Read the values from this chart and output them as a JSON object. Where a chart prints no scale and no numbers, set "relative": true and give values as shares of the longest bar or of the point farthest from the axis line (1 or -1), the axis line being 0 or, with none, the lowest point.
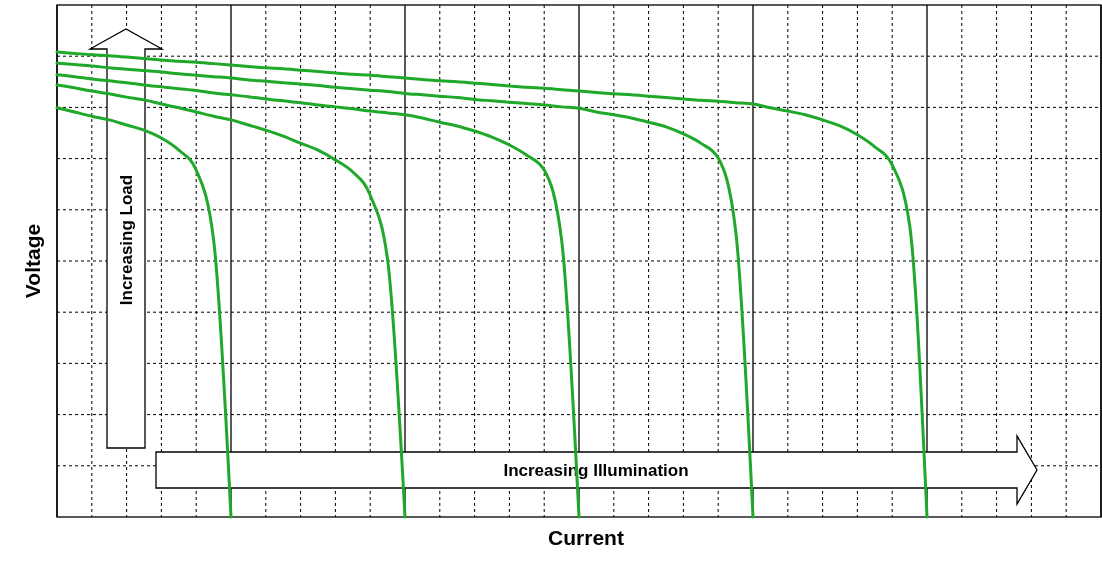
{
  "chart_data": {
    "type": "line",
    "relative": true,
    "xlabel": "Current",
    "ylabel": "Voltage",
    "grid": true,
    "categories": [
      null,
      null,
      null,
      null,
      null,
      null,
      null,
      null,
      null,
      null,
      null,
      null,
      null,
      null,
      null,
      null,
      null,
      null,
      null,
      null,
      null,
      null,
      null,
      null,
      null,
      null,
      null,
      null,
      null,
      null,
      null,
      null,
      null,
      null,
      null,
      null,
      null,
      null,
      null,
      null,
      null,
      null,
      null,
      null,
      null,
      null,
      null,
      null,
      null,
      null,
      null,
      null,
      null,
      null,
      null,
      null,
      null,
      null,
      null,
      null,
      null
    ],
    "annotations": [
      "Increasing Load",
      "Increasing Illumination"
    ],
    "series": [
      {
        "color": "#1fa82a",
        "values": [
          0.88,
          0.871,
          0.862,
          0.854,
          0.843,
          0.832,
          0.815,
          0.789,
          0.746,
          0.596,
          0,
          null,
          null,
          null,
          null,
          null,
          null,
          null,
          null,
          null,
          null,
          null,
          null,
          null,
          null,
          null,
          null,
          null,
          null,
          null,
          null,
          null,
          null,
          null,
          null,
          null,
          null,
          null,
          null,
          null,
          null,
          null,
          null,
          null,
          null,
          null,
          null,
          null,
          null,
          null,
          null,
          null,
          null,
          null,
          null,
          null,
          null,
          null,
          null,
          null,
          null
        ]
      },
      {
        "color": "#1fa82a",
        "values": [
          0.929,
          0.923,
          0.916,
          0.91,
          0.903,
          0.897,
          0.888,
          0.88,
          0.871,
          0.862,
          0.854,
          0.843,
          0.832,
          0.819,
          0.804,
          0.789,
          0.768,
          0.742,
          0.692,
          0.553,
          0,
          null,
          null,
          null,
          null,
          null,
          null,
          null,
          null,
          null,
          null,
          null,
          null,
          null,
          null,
          null,
          null,
          null,
          null,
          null,
          null,
          null,
          null,
          null,
          null,
          null,
          null,
          null,
          null,
          null,
          null,
          null,
          null,
          null,
          null,
          null,
          null,
          null,
          null,
          null,
          null
        ]
      },
      {
        "color": "#1fa82a",
        "values": [
          0.951,
          0.947,
          0.942,
          0.938,
          0.934,
          0.929,
          0.925,
          0.921,
          0.917,
          0.912,
          0.908,
          0.904,
          0.899,
          0.895,
          0.891,
          0.886,
          0.882,
          0.878,
          0.873,
          0.869,
          0.865,
          0.858,
          0.849,
          0.841,
          0.83,
          0.817,
          0.8,
          0.778,
          0.746,
          0.596,
          0,
          null,
          null,
          null,
          null,
          null,
          null,
          null,
          null,
          null,
          null,
          null,
          null,
          null,
          null,
          null,
          null,
          null,
          null,
          null,
          null,
          null,
          null,
          null,
          null,
          null,
          null,
          null,
          null,
          null,
          null
        ]
      },
      {
        "color": "#1fa82a",
        "values": [
          0.976,
          0.973,
          0.97,
          0.966,
          0.963,
          0.96,
          0.957,
          0.953,
          0.95,
          0.947,
          0.944,
          0.94,
          0.937,
          0.934,
          0.931,
          0.928,
          0.924,
          0.921,
          0.918,
          0.915,
          0.911,
          0.908,
          0.905,
          0.902,
          0.898,
          0.895,
          0.892,
          0.889,
          0.886,
          0.882,
          0.879,
          0.871,
          0.865,
          0.858,
          0.849,
          0.839,
          0.824,
          0.804,
          0.772,
          0.617,
          0,
          null,
          null,
          null,
          null,
          null,
          null,
          null,
          null,
          null,
          null,
          null,
          null,
          null,
          null,
          null,
          null,
          null,
          null,
          null,
          null
        ]
      },
      {
        "color": "#1fa82a",
        "values": [
          1,
          0.997,
          0.994,
          0.992,
          0.989,
          0.986,
          0.983,
          0.98,
          0.978,
          0.975,
          0.972,
          0.969,
          0.966,
          0.964,
          0.961,
          0.958,
          0.955,
          0.952,
          0.95,
          0.947,
          0.944,
          0.941,
          0.938,
          0.936,
          0.933,
          0.93,
          0.927,
          0.924,
          0.922,
          0.919,
          0.916,
          0.913,
          0.91,
          0.908,
          0.905,
          0.902,
          0.899,
          0.896,
          0.894,
          0.891,
          0.888,
          0.88,
          0.873,
          0.865,
          0.854,
          0.841,
          0.822,
          0.796,
          0.757,
          0.628,
          0,
          null,
          null,
          null,
          null,
          null,
          null,
          null,
          null,
          null,
          null
        ]
      }
    ]
  }
}
